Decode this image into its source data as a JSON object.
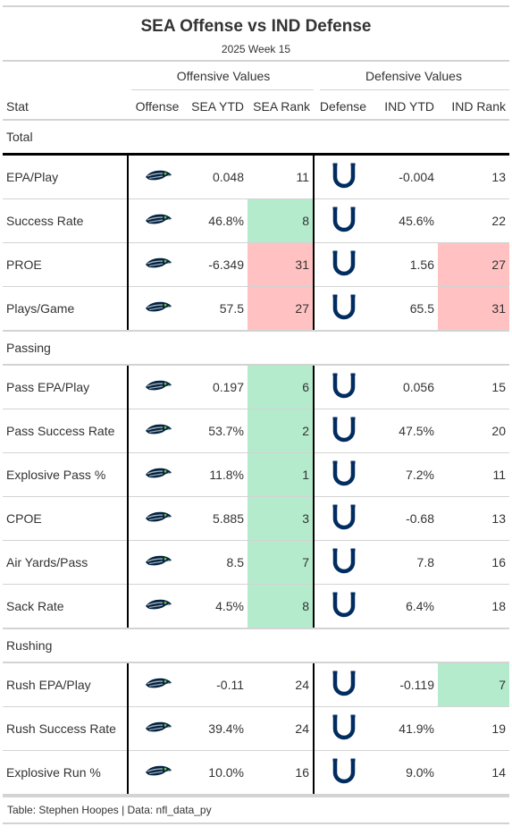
{
  "title": "SEA Offense vs IND Defense",
  "subtitle": "2025 Week 15",
  "spanners": {
    "offense": "Offensive Values",
    "defense": "Defensive Values"
  },
  "columns": {
    "stat": "Stat",
    "offense": "Offense",
    "off_ytd": "SEA YTD",
    "off_rank": "SEA Rank",
    "defense": "Defense",
    "def_ytd": "IND YTD",
    "def_rank": "IND Rank"
  },
  "colors": {
    "good": "#b4ebcd",
    "bad": "#ffc1c1",
    "seahawks_navy": "#002244",
    "seahawks_grey": "#a5acaf",
    "seahawks_green": "#69be28",
    "colts_blue": "#002c5f"
  },
  "icons": {
    "offense": "seahawks-logo-icon",
    "defense": "colts-horseshoe-icon"
  },
  "groups": [
    {
      "name": "Total",
      "rows": [
        {
          "stat": "EPA/Play",
          "off_ytd": "0.048",
          "off_rank": "11",
          "off_tier": "",
          "def_ytd": "-0.004",
          "def_rank": "13",
          "def_tier": ""
        },
        {
          "stat": "Success Rate",
          "off_ytd": "46.8%",
          "off_rank": "8",
          "off_tier": "good",
          "def_ytd": "45.6%",
          "def_rank": "22",
          "def_tier": ""
        },
        {
          "stat": "PROE",
          "off_ytd": "-6.349",
          "off_rank": "31",
          "off_tier": "bad",
          "def_ytd": "1.56",
          "def_rank": "27",
          "def_tier": "bad"
        },
        {
          "stat": "Plays/Game",
          "off_ytd": "57.5",
          "off_rank": "27",
          "off_tier": "bad",
          "def_ytd": "65.5",
          "def_rank": "31",
          "def_tier": "bad"
        }
      ]
    },
    {
      "name": "Passing",
      "rows": [
        {
          "stat": "Pass EPA/Play",
          "off_ytd": "0.197",
          "off_rank": "6",
          "off_tier": "good",
          "def_ytd": "0.056",
          "def_rank": "15",
          "def_tier": ""
        },
        {
          "stat": "Pass Success Rate",
          "off_ytd": "53.7%",
          "off_rank": "2",
          "off_tier": "good",
          "def_ytd": "47.5%",
          "def_rank": "20",
          "def_tier": ""
        },
        {
          "stat": "Explosive Pass %",
          "off_ytd": "11.8%",
          "off_rank": "1",
          "off_tier": "good",
          "def_ytd": "7.2%",
          "def_rank": "11",
          "def_tier": ""
        },
        {
          "stat": "CPOE",
          "off_ytd": "5.885",
          "off_rank": "3",
          "off_tier": "good",
          "def_ytd": "-0.68",
          "def_rank": "13",
          "def_tier": ""
        },
        {
          "stat": "Air Yards/Pass",
          "off_ytd": "8.5",
          "off_rank": "7",
          "off_tier": "good",
          "def_ytd": "7.8",
          "def_rank": "16",
          "def_tier": ""
        },
        {
          "stat": "Sack Rate",
          "off_ytd": "4.5%",
          "off_rank": "8",
          "off_tier": "good",
          "def_ytd": "6.4%",
          "def_rank": "18",
          "def_tier": ""
        }
      ]
    },
    {
      "name": "Rushing",
      "rows": [
        {
          "stat": "Rush EPA/Play",
          "off_ytd": "-0.11",
          "off_rank": "24",
          "off_tier": "",
          "def_ytd": "-0.119",
          "def_rank": "7",
          "def_tier": "good"
        },
        {
          "stat": "Rush Success Rate",
          "off_ytd": "39.4%",
          "off_rank": "24",
          "off_tier": "",
          "def_ytd": "41.9%",
          "def_rank": "19",
          "def_tier": ""
        },
        {
          "stat": "Explosive Run %",
          "off_ytd": "10.0%",
          "off_rank": "16",
          "off_tier": "",
          "def_ytd": "9.0%",
          "def_rank": "14",
          "def_tier": ""
        }
      ]
    }
  ],
  "footer": "Table: Stephen Hoopes | Data: nfl_data_py"
}
